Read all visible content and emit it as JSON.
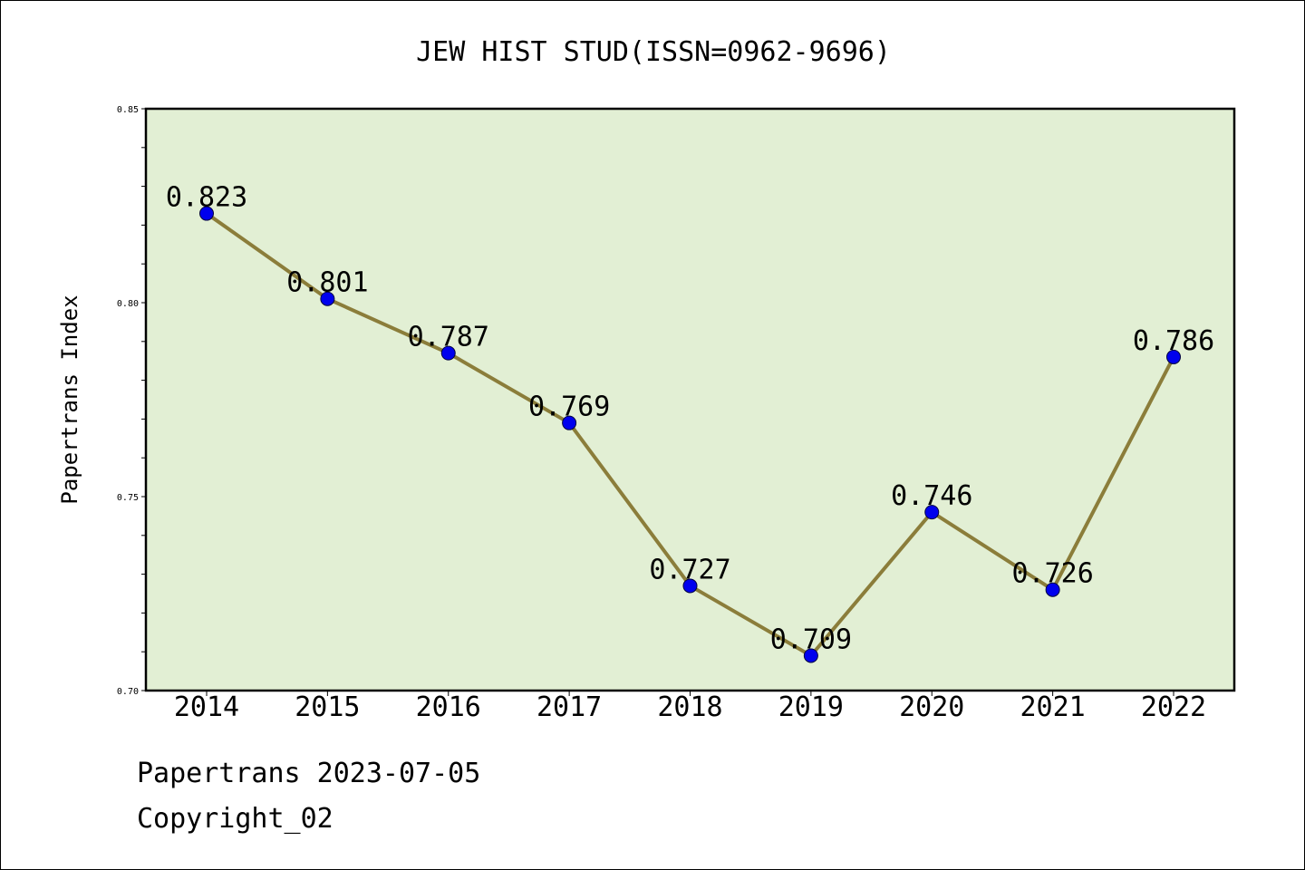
{
  "chart_data": {
    "type": "line",
    "title": "JEW HIST STUD(ISSN=0962-9696)",
    "xlabel": "",
    "ylabel": "Papertrans Index",
    "categories": [
      "2014",
      "2015",
      "2016",
      "2017",
      "2018",
      "2019",
      "2020",
      "2021",
      "2022"
    ],
    "series": [
      {
        "values": [
          0.823,
          0.801,
          0.787,
          0.769,
          0.727,
          0.709,
          0.746,
          0.726,
          0.786
        ]
      }
    ],
    "data_labels": [
      "0.823",
      "0.801",
      "0.787",
      "0.769",
      "0.727",
      "0.709",
      "0.746",
      "0.726",
      "0.786"
    ],
    "ylim": [
      0.7,
      0.85
    ],
    "yticks": [
      "0.70",
      "0.75",
      "0.80",
      "0.85"
    ],
    "grid": false,
    "colors": {
      "plot_bg": "#e2efd4",
      "line": "#8b7d3a",
      "marker": "#0000ee"
    }
  },
  "footer": {
    "line1": "Papertrans 2023-07-05",
    "line2": "Copyright_02"
  }
}
